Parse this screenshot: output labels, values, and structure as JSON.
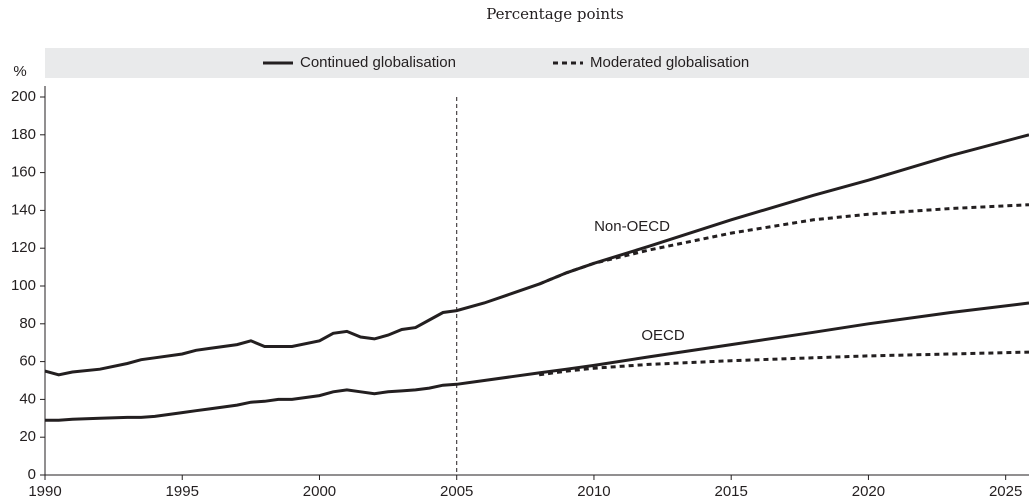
{
  "chart_data": {
    "type": "line",
    "subtitle": "Percentage points",
    "y_label": "%",
    "annotations": [
      "Non-OECD",
      "OECD"
    ],
    "vline": 2005,
    "x": [
      1990,
      1990.5,
      1991,
      1992,
      1993,
      1993.5,
      1994,
      1995,
      1995.5,
      1996,
      1997,
      1997.5,
      1998,
      1998.5,
      1999,
      2000,
      2000.5,
      2001,
      2001.5,
      2002,
      2002.5,
      2003,
      2003.5,
      2004,
      2004.5,
      2005,
      2006,
      2007,
      2008,
      2009,
      2010,
      2012,
      2015,
      2018,
      2020,
      2023,
      2025.85
    ],
    "legend_series": [
      "Continued globalisation",
      "Moderated globalisation"
    ],
    "series": [
      {
        "name": "Continued globalisation",
        "group": "Non-OECD",
        "color": "#231f20",
        "style": "solid",
        "values": [
          55,
          53,
          54.5,
          56,
          59,
          61,
          62,
          64,
          66,
          67,
          69,
          71,
          68,
          68,
          68,
          71,
          75,
          76,
          73,
          72,
          74,
          77,
          78,
          82,
          86,
          87,
          91,
          96,
          101,
          107,
          112,
          121,
          135,
          148,
          156,
          169,
          180
        ]
      },
      {
        "name": "Moderated globalisation",
        "group": "Non-OECD",
        "color": "#231f20",
        "style": "dotted",
        "values": [
          null,
          null,
          null,
          null,
          null,
          null,
          null,
          null,
          null,
          null,
          null,
          null,
          null,
          null,
          null,
          null,
          null,
          null,
          null,
          null,
          null,
          null,
          null,
          null,
          null,
          null,
          null,
          null,
          101,
          107,
          112,
          119,
          128,
          135,
          138,
          141,
          143
        ]
      },
      {
        "name": "Continued globalisation",
        "group": "OECD",
        "color": "#231f20",
        "style": "solid",
        "values": [
          29,
          29,
          29.5,
          30,
          30.5,
          30.5,
          31,
          33,
          34,
          35,
          37,
          38.5,
          39,
          40,
          40,
          42,
          44,
          45,
          44,
          43,
          44,
          44.5,
          45,
          46,
          47.5,
          48,
          50,
          52,
          54,
          56,
          58,
          62.5,
          69,
          75.5,
          80,
          86,
          91
        ]
      },
      {
        "name": "Moderated globalisation",
        "group": "OECD",
        "color": "#231f20",
        "style": "dotted",
        "values": [
          null,
          null,
          null,
          null,
          null,
          null,
          null,
          null,
          null,
          null,
          null,
          null,
          null,
          null,
          null,
          null,
          null,
          null,
          null,
          null,
          null,
          null,
          null,
          null,
          null,
          null,
          null,
          null,
          53,
          55,
          56.5,
          58.5,
          60.5,
          62,
          63,
          64,
          65
        ]
      }
    ],
    "xlim": [
      1990,
      2025.85
    ],
    "xticks": [
      1990,
      1995,
      2000,
      2005,
      2010,
      2015,
      2020,
      2025
    ],
    "ylim": [
      0,
      200
    ],
    "yticks": [
      0,
      20,
      40,
      60,
      80,
      100,
      120,
      140,
      160,
      180,
      200
    ],
    "grid": false
  }
}
